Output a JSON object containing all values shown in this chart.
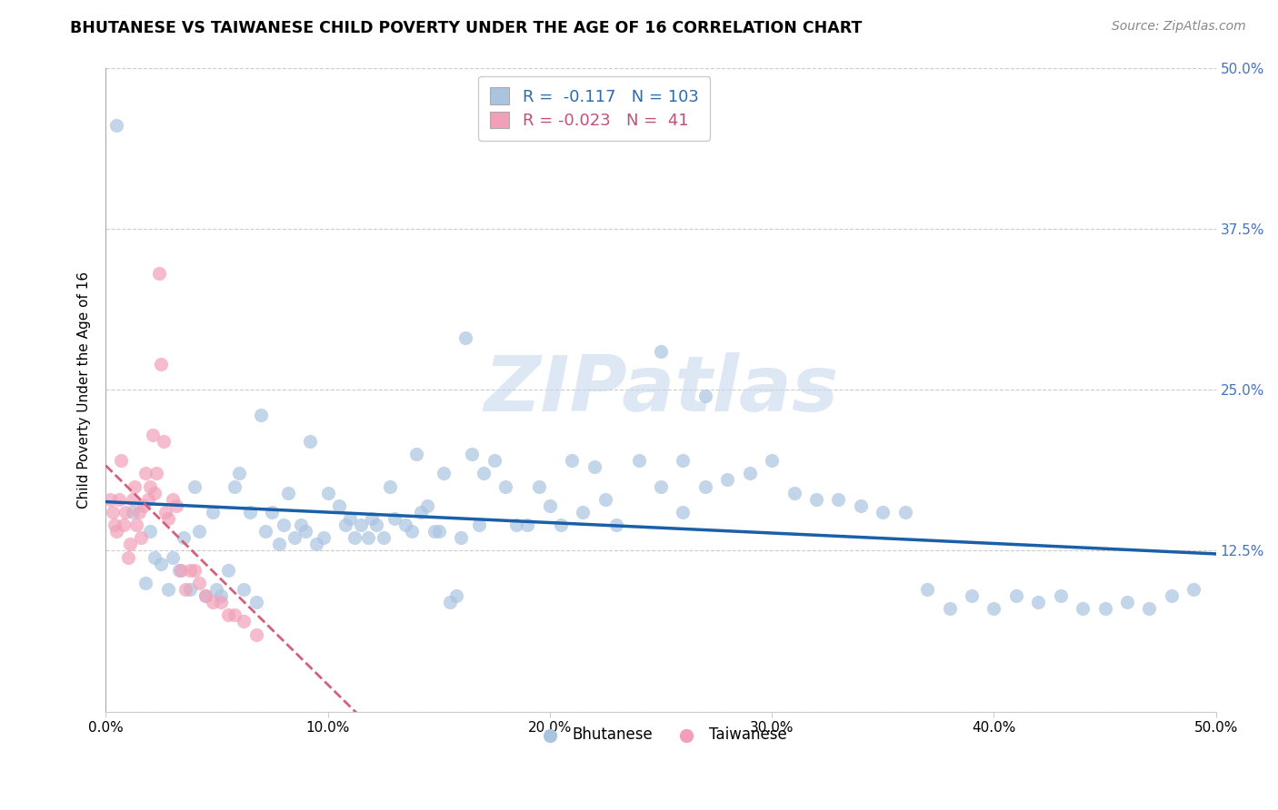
{
  "title": "BHUTANESE VS TAIWANESE CHILD POVERTY UNDER THE AGE OF 16 CORRELATION CHART",
  "source": "Source: ZipAtlas.com",
  "ylabel": "Child Poverty Under the Age of 16",
  "xlim": [
    0,
    0.5
  ],
  "ylim": [
    0,
    0.5
  ],
  "xticks": [
    0.0,
    0.1,
    0.2,
    0.3,
    0.4,
    0.5
  ],
  "yticks": [
    0.0,
    0.125,
    0.25,
    0.375,
    0.5
  ],
  "xticklabels": [
    "0.0%",
    "10.0%",
    "20.0%",
    "30.0%",
    "40.0%",
    "50.0%"
  ],
  "yticklabels": [
    "",
    "12.5%",
    "25.0%",
    "37.5%",
    "50.0%"
  ],
  "bhutanese_R": -0.117,
  "bhutanese_N": 103,
  "taiwanese_R": -0.023,
  "taiwanese_N": 41,
  "blue_color": "#aac4e0",
  "pink_color": "#f2a0b8",
  "blue_line_color": "#1a5fa8",
  "pink_line_color": "#d4607a",
  "watermark": "ZIPatlas",
  "bhutanese_x": [
    0.005,
    0.012,
    0.018,
    0.02,
    0.022,
    0.025,
    0.028,
    0.03,
    0.033,
    0.035,
    0.038,
    0.04,
    0.042,
    0.045,
    0.048,
    0.05,
    0.052,
    0.055,
    0.058,
    0.06,
    0.062,
    0.065,
    0.068,
    0.07,
    0.072,
    0.075,
    0.078,
    0.08,
    0.082,
    0.085,
    0.088,
    0.09,
    0.092,
    0.095,
    0.098,
    0.1,
    0.105,
    0.108,
    0.11,
    0.112,
    0.115,
    0.118,
    0.12,
    0.122,
    0.125,
    0.128,
    0.13,
    0.135,
    0.138,
    0.14,
    0.142,
    0.145,
    0.148,
    0.15,
    0.152,
    0.155,
    0.158,
    0.16,
    0.162,
    0.165,
    0.168,
    0.17,
    0.175,
    0.18,
    0.185,
    0.19,
    0.195,
    0.2,
    0.205,
    0.21,
    0.215,
    0.22,
    0.225,
    0.23,
    0.24,
    0.25,
    0.26,
    0.27,
    0.28,
    0.29,
    0.3,
    0.31,
    0.32,
    0.33,
    0.34,
    0.35,
    0.36,
    0.37,
    0.38,
    0.39,
    0.4,
    0.41,
    0.42,
    0.43,
    0.44,
    0.45,
    0.46,
    0.47,
    0.48,
    0.49,
    0.25,
    0.26,
    0.27
  ],
  "bhutanese_y": [
    0.455,
    0.155,
    0.1,
    0.14,
    0.12,
    0.115,
    0.095,
    0.12,
    0.11,
    0.135,
    0.095,
    0.175,
    0.14,
    0.09,
    0.155,
    0.095,
    0.09,
    0.11,
    0.175,
    0.185,
    0.095,
    0.155,
    0.085,
    0.23,
    0.14,
    0.155,
    0.13,
    0.145,
    0.17,
    0.135,
    0.145,
    0.14,
    0.21,
    0.13,
    0.135,
    0.17,
    0.16,
    0.145,
    0.15,
    0.135,
    0.145,
    0.135,
    0.15,
    0.145,
    0.135,
    0.175,
    0.15,
    0.145,
    0.14,
    0.2,
    0.155,
    0.16,
    0.14,
    0.14,
    0.185,
    0.085,
    0.09,
    0.135,
    0.29,
    0.2,
    0.145,
    0.185,
    0.195,
    0.175,
    0.145,
    0.145,
    0.175,
    0.16,
    0.145,
    0.195,
    0.155,
    0.19,
    0.165,
    0.145,
    0.195,
    0.28,
    0.195,
    0.175,
    0.18,
    0.185,
    0.195,
    0.17,
    0.165,
    0.165,
    0.16,
    0.155,
    0.155,
    0.095,
    0.08,
    0.09,
    0.08,
    0.09,
    0.085,
    0.09,
    0.08,
    0.08,
    0.085,
    0.08,
    0.09,
    0.095,
    0.175,
    0.155,
    0.245
  ],
  "taiwanese_x": [
    0.002,
    0.003,
    0.004,
    0.005,
    0.006,
    0.007,
    0.008,
    0.009,
    0.01,
    0.011,
    0.012,
    0.013,
    0.014,
    0.015,
    0.016,
    0.017,
    0.018,
    0.019,
    0.02,
    0.021,
    0.022,
    0.023,
    0.024,
    0.025,
    0.026,
    0.027,
    0.028,
    0.03,
    0.032,
    0.034,
    0.036,
    0.038,
    0.04,
    0.042,
    0.045,
    0.048,
    0.052,
    0.055,
    0.058,
    0.062,
    0.068
  ],
  "taiwanese_y": [
    0.165,
    0.155,
    0.145,
    0.14,
    0.165,
    0.195,
    0.145,
    0.155,
    0.12,
    0.13,
    0.165,
    0.175,
    0.145,
    0.155,
    0.135,
    0.16,
    0.185,
    0.165,
    0.175,
    0.215,
    0.17,
    0.185,
    0.34,
    0.27,
    0.21,
    0.155,
    0.15,
    0.165,
    0.16,
    0.11,
    0.095,
    0.11,
    0.11,
    0.1,
    0.09,
    0.085,
    0.085,
    0.075,
    0.075,
    0.07,
    0.06
  ]
}
